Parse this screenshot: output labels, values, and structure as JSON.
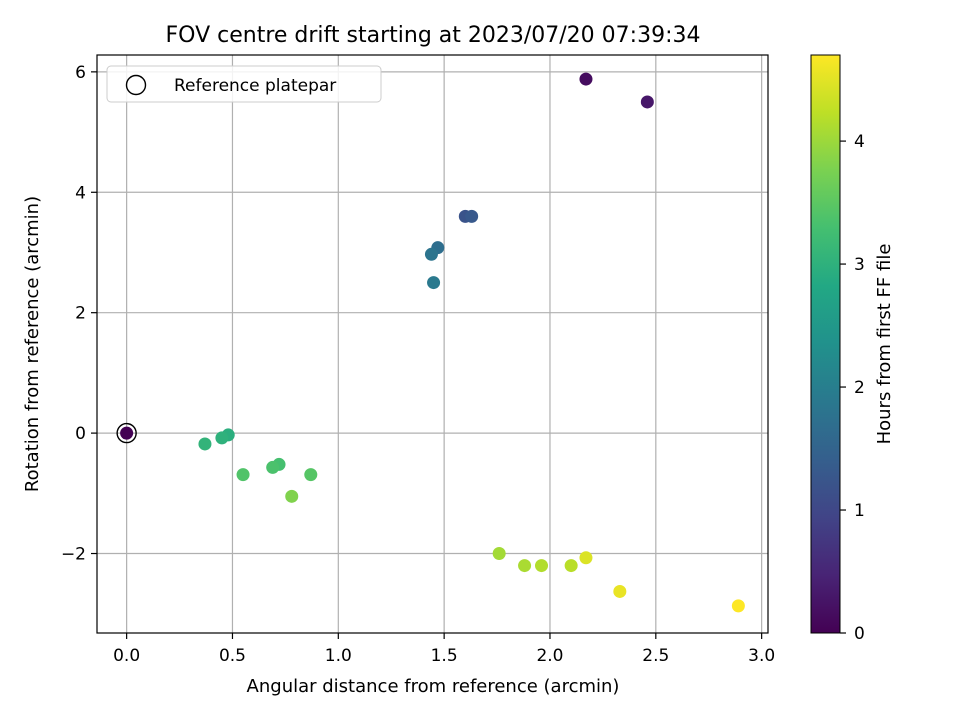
{
  "chart_data": {
    "type": "scatter",
    "title": "FOV centre drift starting at 2023/07/20 07:39:34",
    "xlabel": "Angular distance from reference (arcmin)",
    "ylabel": "Rotation from reference (arcmin)",
    "xlim": [
      -0.14,
      3.03
    ],
    "ylim": [
      -3.32,
      6.28
    ],
    "xticks": [
      0.0,
      0.5,
      1.0,
      1.5,
      2.0,
      2.5,
      3.0
    ],
    "xtick_labels": [
      "0.0",
      "0.5",
      "1.0",
      "1.5",
      "2.0",
      "2.5",
      "3.0"
    ],
    "yticks": [
      -2,
      0,
      2,
      4,
      6
    ],
    "ytick_labels": [
      "−2",
      "0",
      "2",
      "4",
      "6"
    ],
    "grid": true,
    "legend": {
      "placement": "upper-left",
      "entries": [
        {
          "label": "Reference platepar",
          "marker": "open-circle"
        }
      ]
    },
    "reference_point": {
      "x": 0.0,
      "y": 0.0
    },
    "colorbar": {
      "label": "Hours from first FF file",
      "colormap": "viridis",
      "range": [
        0,
        4.7
      ],
      "ticks": [
        0,
        1,
        2,
        3,
        4
      ],
      "tick_labels": [
        "0",
        "1",
        "2",
        "3",
        "4"
      ]
    },
    "points": [
      {
        "x": 0.0,
        "y": 0.0,
        "hours": 0.0
      },
      {
        "x": 2.17,
        "y": 5.88,
        "hours": 0.15
      },
      {
        "x": 2.46,
        "y": 5.5,
        "hours": 0.3
      },
      {
        "x": 1.6,
        "y": 3.6,
        "hours": 1.2
      },
      {
        "x": 1.63,
        "y": 3.6,
        "hours": 1.3
      },
      {
        "x": 1.47,
        "y": 3.08,
        "hours": 1.7
      },
      {
        "x": 1.44,
        "y": 2.97,
        "hours": 1.8
      },
      {
        "x": 1.45,
        "y": 2.5,
        "hours": 1.9
      },
      {
        "x": 0.48,
        "y": -0.03,
        "hours": 2.95
      },
      {
        "x": 0.45,
        "y": -0.08,
        "hours": 3.0
      },
      {
        "x": 0.37,
        "y": -0.18,
        "hours": 3.05
      },
      {
        "x": 0.72,
        "y": -0.52,
        "hours": 3.3
      },
      {
        "x": 0.69,
        "y": -0.57,
        "hours": 3.35
      },
      {
        "x": 0.55,
        "y": -0.69,
        "hours": 3.4
      },
      {
        "x": 0.87,
        "y": -0.69,
        "hours": 3.45
      },
      {
        "x": 0.78,
        "y": -1.05,
        "hours": 3.8
      },
      {
        "x": 1.76,
        "y": -2.0,
        "hours": 4.05
      },
      {
        "x": 1.88,
        "y": -2.2,
        "hours": 4.1
      },
      {
        "x": 1.96,
        "y": -2.2,
        "hours": 4.15
      },
      {
        "x": 2.1,
        "y": -2.2,
        "hours": 4.2
      },
      {
        "x": 2.17,
        "y": -2.07,
        "hours": 4.45
      },
      {
        "x": 2.33,
        "y": -2.63,
        "hours": 4.55
      },
      {
        "x": 2.89,
        "y": -2.87,
        "hours": 4.7
      }
    ]
  }
}
